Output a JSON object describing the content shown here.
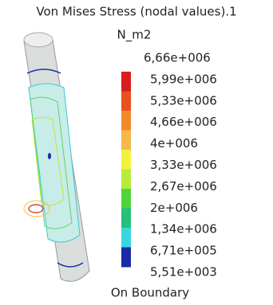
{
  "title": "Von Mises Stress (nodal values).1",
  "unit": "N_m2",
  "legend": {
    "labels": [
      "6,66e+006",
      "5,99e+006",
      "5,33e+006",
      "4,66e+006",
      "4e+006",
      "3,33e+006",
      "2,67e+006",
      "2e+006",
      "1,34e+006",
      "6,71e+005",
      "5,51e+003"
    ],
    "colors": [
      "#d81e1e",
      "#e8501e",
      "#f08a2a",
      "#f5b84a",
      "#f2f23c",
      "#b8ec3a",
      "#4fd43a",
      "#27c07a",
      "#3ad6e0",
      "#1a2aa8"
    ]
  },
  "footer": "On Boundary"
}
